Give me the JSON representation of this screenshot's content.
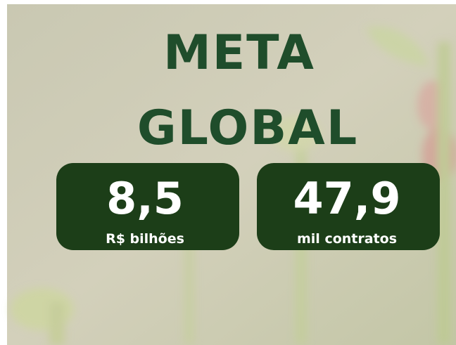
{
  "title": {
    "line1": "META",
    "line2": "GLOBAL"
  },
  "cards": [
    {
      "value": "8,5",
      "unit": "R$ bilhões"
    },
    {
      "value": "47,9",
      "unit": "mil contratos"
    }
  ]
}
